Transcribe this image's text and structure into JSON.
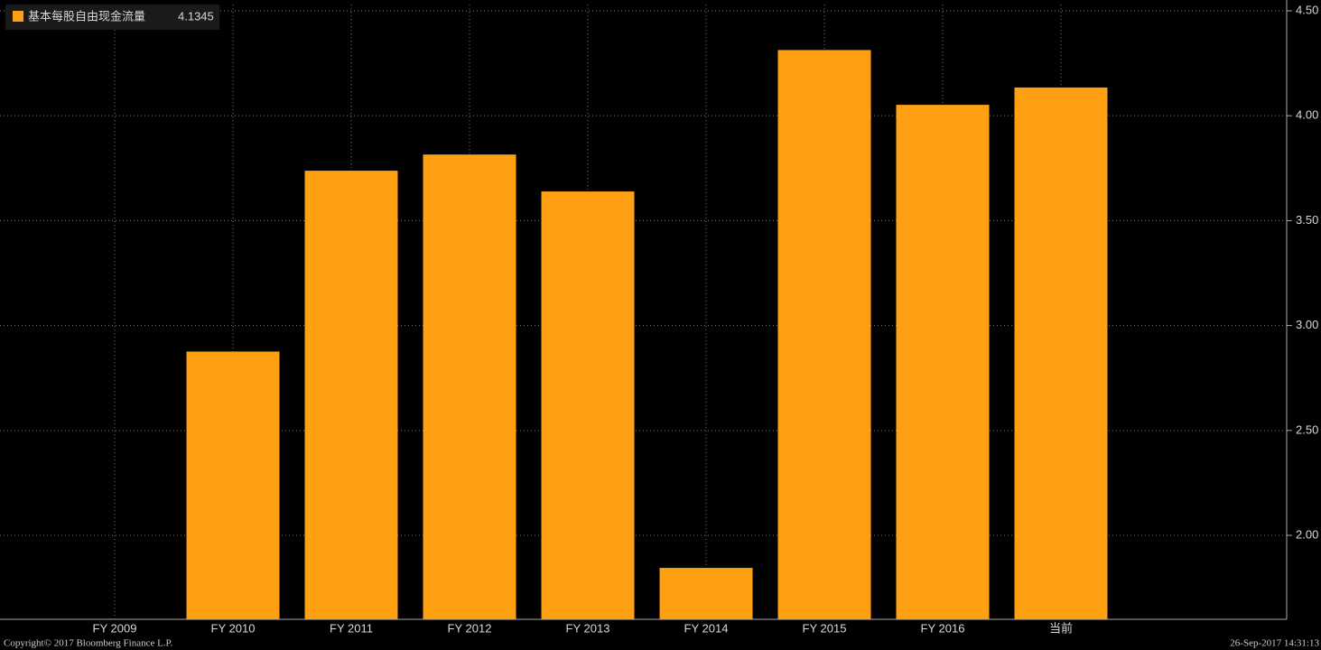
{
  "chart_data": {
    "type": "bar",
    "categories": [
      "FY 2009",
      "FY 2010",
      "FY 2011",
      "FY 2012",
      "FY 2013",
      "FY 2014",
      "FY 2015",
      "FY 2016",
      "当前"
    ],
    "series": [
      {
        "name": "基本每股自由现金流量",
        "color": "#ff9f12",
        "values": [
          null,
          2.876,
          3.738,
          3.815,
          3.639,
          1.845,
          4.313,
          4.052,
          4.1345
        ]
      }
    ],
    "ylim": [
      1.6,
      4.53
    ],
    "yticks": [
      {
        "value": 2,
        "label": "2.00"
      },
      {
        "value": 2.5,
        "label": "2.50"
      },
      {
        "value": 3,
        "label": "3.00"
      },
      {
        "value": 3.5,
        "label": "3.50"
      },
      {
        "value": 4,
        "label": "4.00"
      },
      {
        "value": 4.5,
        "label": "4.50"
      }
    ],
    "grid": true,
    "copyright": "Copyright© 2017 Bloomberg Finance L.P.",
    "timestamp": "26-Sep-2017 14:31:13"
  }
}
